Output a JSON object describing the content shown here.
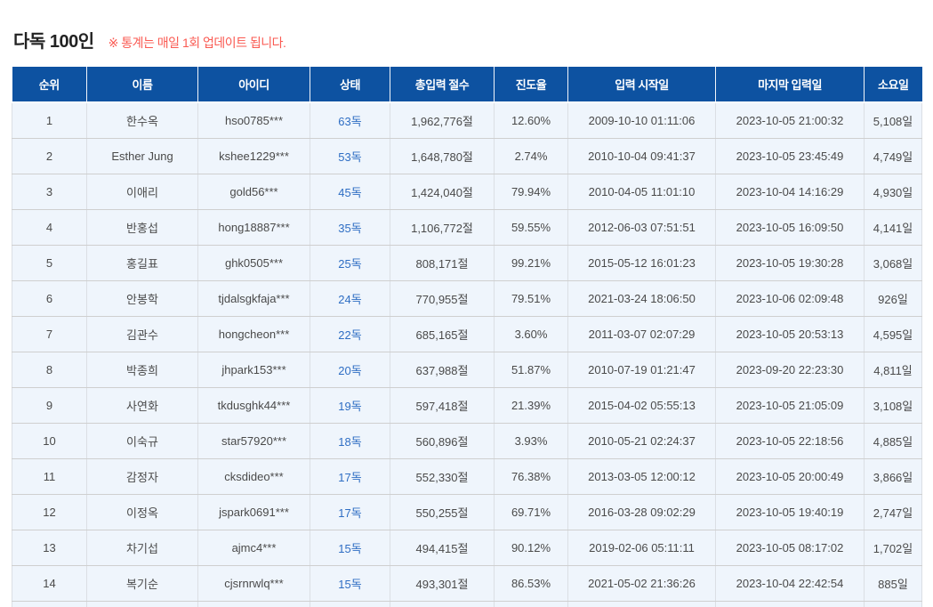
{
  "page": {
    "title": "다독 100인",
    "notice": "※ 통계는 매일 1회 업데이트 됩니다."
  },
  "table": {
    "columns": [
      "순위",
      "이름",
      "아이디",
      "상태",
      "총입력 절수",
      "진도율",
      "입력 시작일",
      "마지막 입력일",
      "소요일"
    ],
    "rows": [
      {
        "rank": "1",
        "name": "한수옥",
        "id": "hso0785***",
        "status": "63독",
        "total": "1,962,776절",
        "progress": "12.60%",
        "start": "2009-10-10 01:11:06",
        "last": "2023-10-05 21:00:32",
        "days": "5,108일"
      },
      {
        "rank": "2",
        "name": "Esther Jung",
        "id": "kshee1229***",
        "status": "53독",
        "total": "1,648,780절",
        "progress": "2.74%",
        "start": "2010-10-04 09:41:37",
        "last": "2023-10-05 23:45:49",
        "days": "4,749일"
      },
      {
        "rank": "3",
        "name": "이애리",
        "id": "gold56***",
        "status": "45독",
        "total": "1,424,040절",
        "progress": "79.94%",
        "start": "2010-04-05 11:01:10",
        "last": "2023-10-04 14:16:29",
        "days": "4,930일"
      },
      {
        "rank": "4",
        "name": "반홍섭",
        "id": "hong18887***",
        "status": "35독",
        "total": "1,106,772절",
        "progress": "59.55%",
        "start": "2012-06-03 07:51:51",
        "last": "2023-10-05 16:09:50",
        "days": "4,141일"
      },
      {
        "rank": "5",
        "name": "홍길표",
        "id": "ghk0505***",
        "status": "25독",
        "total": "808,171절",
        "progress": "99.21%",
        "start": "2015-05-12 16:01:23",
        "last": "2023-10-05 19:30:28",
        "days": "3,068일"
      },
      {
        "rank": "6",
        "name": "안봉학",
        "id": "tjdalsgkfaja***",
        "status": "24독",
        "total": "770,955절",
        "progress": "79.51%",
        "start": "2021-03-24 18:06:50",
        "last": "2023-10-06 02:09:48",
        "days": "926일"
      },
      {
        "rank": "7",
        "name": "김관수",
        "id": "hongcheon***",
        "status": "22독",
        "total": "685,165절",
        "progress": "3.60%",
        "start": "2011-03-07 02:07:29",
        "last": "2023-10-05 20:53:13",
        "days": "4,595일"
      },
      {
        "rank": "8",
        "name": "박종희",
        "id": "jhpark153***",
        "status": "20독",
        "total": "637,988절",
        "progress": "51.87%",
        "start": "2010-07-19 01:21:47",
        "last": "2023-09-20 22:23:30",
        "days": "4,811일"
      },
      {
        "rank": "9",
        "name": "사연화",
        "id": "tkdusghk44***",
        "status": "19독",
        "total": "597,418절",
        "progress": "21.39%",
        "start": "2015-04-02 05:55:13",
        "last": "2023-10-05 21:05:09",
        "days": "3,108일"
      },
      {
        "rank": "10",
        "name": "이숙규",
        "id": "star57920***",
        "status": "18독",
        "total": "560,896절",
        "progress": "3.93%",
        "start": "2010-05-21 02:24:37",
        "last": "2023-10-05 22:18:56",
        "days": "4,885일"
      },
      {
        "rank": "11",
        "name": "감정자",
        "id": "cksdideo***",
        "status": "17독",
        "total": "552,330절",
        "progress": "76.38%",
        "start": "2013-03-05 12:00:12",
        "last": "2023-10-05 20:00:49",
        "days": "3,866일"
      },
      {
        "rank": "12",
        "name": "이정옥",
        "id": "jspark0691***",
        "status": "17독",
        "total": "550,255절",
        "progress": "69.71%",
        "start": "2016-03-28 09:02:29",
        "last": "2023-10-05 19:40:19",
        "days": "2,747일"
      },
      {
        "rank": "13",
        "name": "차기섭",
        "id": "ajmc4***",
        "status": "15독",
        "total": "494,415절",
        "progress": "90.12%",
        "start": "2019-02-06 05:11:11",
        "last": "2023-10-05 08:17:02",
        "days": "1,702일"
      },
      {
        "rank": "14",
        "name": "복기순",
        "id": "cjsrnrwlq***",
        "status": "15독",
        "total": "493,301절",
        "progress": "86.53%",
        "start": "2021-05-02 21:36:26",
        "last": "2023-10-04 22:42:54",
        "days": "885일"
      }
    ]
  },
  "colors": {
    "header_bg": "#0d52a1",
    "header_text": "#ffffff",
    "row_bg": "#eff5fc",
    "status_text": "#2f6ec4",
    "notice_text": "#fa5a52",
    "body_text": "#4a4a4a",
    "title_text": "#222222"
  }
}
